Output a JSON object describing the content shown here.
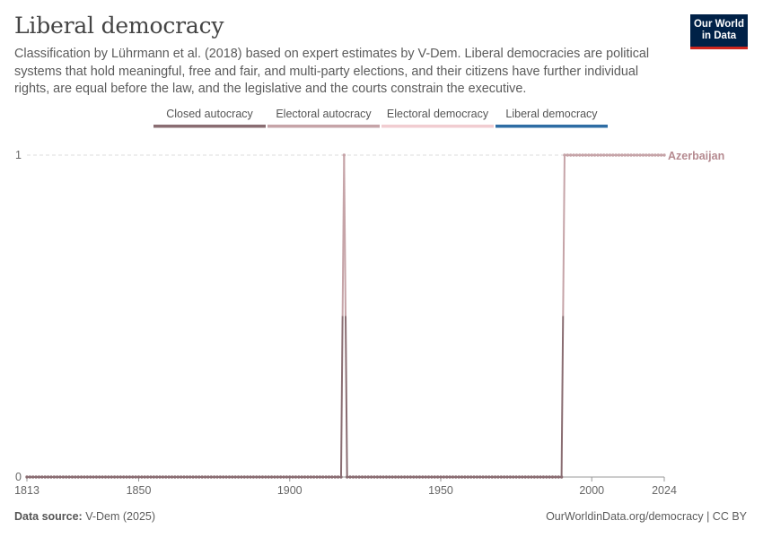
{
  "header": {
    "title": "Liberal democracy",
    "subtitle": "Classification by Lührmann et al. (2018) based on expert estimates by V-Dem. Liberal democracies are political systems that hold meaningful, free and fair, and multi-party elections, and their citizens have further individual rights, are equal before the law, and the legislative and the courts constrain the executive.",
    "logo_line1": "Our World",
    "logo_line2": "in Data"
  },
  "footer": {
    "source_label": "Data source:",
    "source_value": "V-Dem (2025)",
    "credit": "OurWorldinData.org/democracy | CC BY"
  },
  "colors": {
    "closed_autocracy": "#8a6d72",
    "electoral_autocracy": "#c6a4a8",
    "electoral_democracy": "#f1cdd1",
    "liberal_democracy": "#2e6da4",
    "series_label": "#b58a90",
    "text": "#5b5b5b",
    "grid": "#dddddd"
  },
  "chart_data": {
    "type": "line",
    "title": "Liberal democracy",
    "xlabel": "",
    "ylabel": "",
    "xlim": [
      1813,
      2024
    ],
    "ylim": [
      0,
      1
    ],
    "x_ticks": [
      1813,
      1850,
      1900,
      1950,
      2000,
      2024
    ],
    "y_ticks": [
      0,
      1
    ],
    "grid": true,
    "legend_position": "top",
    "legend": [
      "Closed autocracy",
      "Electoral autocracy",
      "Electoral democracy",
      "Liberal democracy"
    ],
    "series": [
      {
        "name": "Azerbaijan",
        "segments": [
          {
            "x_start": 1813,
            "x_end": 1917,
            "value": 0
          },
          {
            "x_start": 1918,
            "x_end": 1918,
            "value": 1
          },
          {
            "x_start": 1919,
            "x_end": 1990,
            "value": 0
          },
          {
            "x_start": 1991,
            "x_end": 2024,
            "value": 1
          }
        ]
      }
    ]
  }
}
